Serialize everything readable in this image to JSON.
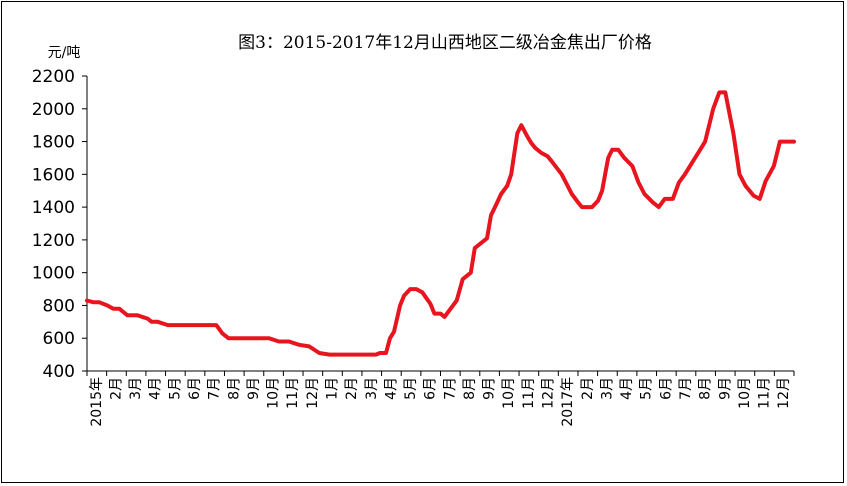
{
  "chart_data": {
    "type": "line",
    "title": "图3：2015-2017年12月山西地区二级冶金焦出厂价格",
    "unit_label": "元/吨",
    "ylim": [
      400,
      2200
    ],
    "yticks": [
      400,
      600,
      800,
      1000,
      1200,
      1400,
      1600,
      1800,
      2000,
      2200
    ],
    "xlabels": [
      "2015年",
      "2月",
      "3月",
      "4月",
      "5月",
      "6月",
      "7月",
      "8月",
      "9月",
      "10月",
      "11月",
      "12月",
      "1月",
      "2月",
      "3月",
      "4月",
      "5月",
      "6月",
      "7月",
      "8月",
      "9月",
      "10月",
      "11月",
      "12月",
      "2017年",
      "2月",
      "3月",
      "4月",
      "5月",
      "6月",
      "7月",
      "8月",
      "9月",
      "10月",
      "11月",
      "12月"
    ],
    "grid": false,
    "series": [
      {
        "color": "#e8141e",
        "x": [
          0,
          0.3,
          0.6,
          1.0,
          1.3,
          1.6,
          2.0,
          2.5,
          3.0,
          3.2,
          3.5,
          4.0,
          4.5,
          5.0,
          5.5,
          6.0,
          6.2,
          6.4,
          6.7,
          7.0,
          7.5,
          8.0,
          8.5,
          9.0,
          9.5,
          10.0,
          10.5,
          11.0,
          11.5,
          12.0,
          12.5,
          13.0,
          13.5,
          14.0,
          14.3,
          14.5,
          14.8,
          15.0,
          15.2,
          15.5,
          15.7,
          16.0,
          16.3,
          16.6,
          17.0,
          17.2,
          17.5,
          17.7,
          18.0,
          18.3,
          18.6,
          19.0,
          19.2,
          19.5,
          19.8,
          20.0,
          20.2,
          20.5,
          20.8,
          21.0,
          21.3,
          21.5,
          21.8,
          22.0,
          22.2,
          22.5,
          22.8,
          23.0,
          23.5,
          24.0,
          24.3,
          24.5,
          24.8,
          25.0,
          25.3,
          25.5,
          25.8,
          26.0,
          26.3,
          26.6,
          27.0,
          27.3,
          27.6,
          28.0,
          28.3,
          28.6,
          29.0,
          29.3,
          29.6,
          30.0,
          30.3,
          30.6,
          31.0,
          31.3,
          31.6,
          32.0,
          32.3,
          32.6,
          33.0,
          33.3,
          33.6,
          34.0,
          34.3,
          34.6,
          35.0
        ],
        "values": [
          830,
          820,
          820,
          800,
          780,
          780,
          740,
          740,
          720,
          700,
          700,
          680,
          680,
          680,
          680,
          680,
          680,
          680,
          630,
          600,
          600,
          600,
          600,
          600,
          580,
          580,
          560,
          550,
          510,
          500,
          500,
          500,
          500,
          500,
          500,
          510,
          510,
          600,
          640,
          800,
          860,
          900,
          900,
          880,
          810,
          750,
          750,
          730,
          780,
          830,
          960,
          1000,
          1150,
          1180,
          1210,
          1350,
          1400,
          1480,
          1530,
          1600,
          1850,
          1900,
          1830,
          1790,
          1760,
          1730,
          1710,
          1680,
          1600,
          1480,
          1430,
          1400,
          1400,
          1400,
          1440,
          1500,
          1700,
          1750,
          1750,
          1700,
          1650,
          1550,
          1480,
          1430,
          1400,
          1450,
          1450,
          1550,
          1600,
          1680,
          1740,
          1800,
          2000,
          2100,
          2100,
          1850,
          1600,
          1530,
          1470,
          1450,
          1560,
          1650,
          1800,
          1800,
          1800
        ]
      }
    ]
  }
}
